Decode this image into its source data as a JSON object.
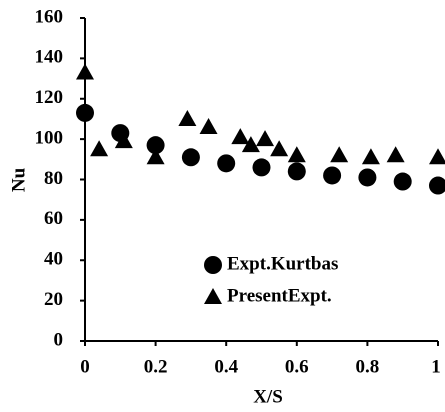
{
  "chart_data": {
    "type": "scatter",
    "x_label": "X/S",
    "y_label": "Nu",
    "xlim": [
      0,
      1
    ],
    "xticks": [
      0,
      0.2,
      0.4,
      0.6,
      0.8,
      1
    ],
    "ylim": [
      0,
      160
    ],
    "yticks": [
      0,
      20,
      40,
      60,
      80,
      100,
      120,
      140,
      160
    ],
    "grid": false,
    "legend_position": "center",
    "series": [
      {
        "name": "Expt.Kurtbas",
        "color": "#000000",
        "marker": "circle",
        "x": [
          0,
          0.1,
          0.2,
          0.3,
          0.4,
          0.5,
          0.6,
          0.7,
          0.8,
          0.9,
          1.0
        ],
        "values": [
          113,
          103,
          97,
          91,
          88,
          86,
          84,
          82,
          81,
          79,
          77
        ]
      },
      {
        "name": "PresentExpt.",
        "color": "#000000",
        "marker": "triangle",
        "x": [
          0,
          0.04,
          0.11,
          0.2,
          0.29,
          0.35,
          0.44,
          0.47,
          0.51,
          0.55,
          0.6,
          0.72,
          0.81,
          0.88,
          1.0
        ],
        "values": [
          133,
          95,
          99,
          91,
          110,
          106,
          101,
          97,
          100,
          95,
          92,
          92,
          91,
          92,
          91
        ]
      }
    ]
  }
}
